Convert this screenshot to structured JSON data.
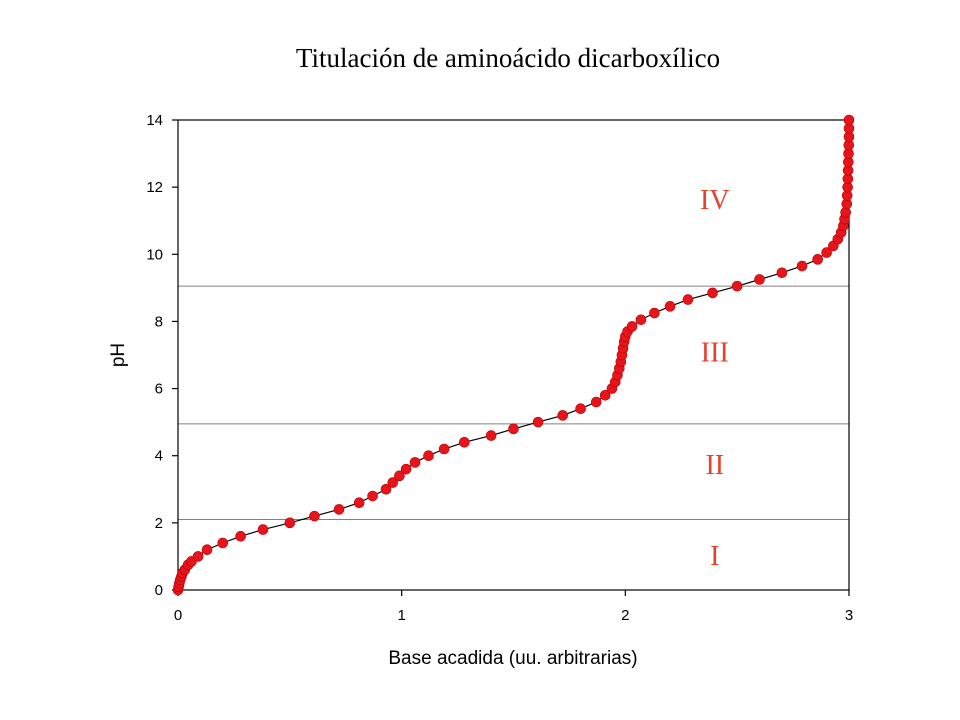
{
  "chart_data": {
    "type": "scatter",
    "title": "Titulación de aminoácido  dicarboxílico",
    "xlabel": "Base acadida (uu. arbitrarias)",
    "ylabel": "pH",
    "xlim": [
      0,
      3
    ],
    "ylim": [
      0,
      14
    ],
    "x_ticks": [
      0,
      1,
      2,
      3
    ],
    "y_ticks": [
      0,
      2,
      4,
      6,
      8,
      10,
      12,
      14
    ],
    "grid": false,
    "legend": "none",
    "colors": {
      "points": "#e8141b",
      "line": "#000000",
      "region_labels": "#e8402a",
      "reference_lines": "#808080"
    },
    "reference_lines_y": [
      2.1,
      4.95,
      9.05
    ],
    "region_labels": [
      {
        "text": "I",
        "x": 2.4,
        "y": 0.75
      },
      {
        "text": "II",
        "x": 2.4,
        "y": 3.45
      },
      {
        "text": "III",
        "x": 2.4,
        "y": 6.8
      },
      {
        "text": "IV",
        "x": 2.4,
        "y": 11.35
      }
    ],
    "series": [
      {
        "points": [
          [
            0.0,
            0.0
          ],
          [
            0.003,
            0.1
          ],
          [
            0.006,
            0.2
          ],
          [
            0.01,
            0.3
          ],
          [
            0.015,
            0.4
          ],
          [
            0.02,
            0.5
          ],
          [
            0.03,
            0.6
          ],
          [
            0.045,
            0.75
          ],
          [
            0.06,
            0.85
          ],
          [
            0.09,
            1.0
          ],
          [
            0.13,
            1.2
          ],
          [
            0.2,
            1.4
          ],
          [
            0.28,
            1.6
          ],
          [
            0.38,
            1.8
          ],
          [
            0.5,
            2.0
          ],
          [
            0.61,
            2.2
          ],
          [
            0.72,
            2.4
          ],
          [
            0.81,
            2.6
          ],
          [
            0.87,
            2.8
          ],
          [
            0.93,
            3.0
          ],
          [
            0.96,
            3.2
          ],
          [
            0.99,
            3.4
          ],
          [
            1.02,
            3.6
          ],
          [
            1.06,
            3.8
          ],
          [
            1.12,
            4.0
          ],
          [
            1.19,
            4.2
          ],
          [
            1.28,
            4.4
          ],
          [
            1.4,
            4.6
          ],
          [
            1.5,
            4.8
          ],
          [
            1.61,
            5.0
          ],
          [
            1.72,
            5.2
          ],
          [
            1.8,
            5.4
          ],
          [
            1.87,
            5.6
          ],
          [
            1.91,
            5.8
          ],
          [
            1.94,
            6.0
          ],
          [
            1.955,
            6.2
          ],
          [
            1.965,
            6.4
          ],
          [
            1.973,
            6.6
          ],
          [
            1.98,
            6.8
          ],
          [
            1.985,
            7.0
          ],
          [
            1.99,
            7.2
          ],
          [
            1.995,
            7.4
          ],
          [
            2.0,
            7.55
          ],
          [
            2.01,
            7.7
          ],
          [
            2.03,
            7.85
          ],
          [
            2.07,
            8.05
          ],
          [
            2.13,
            8.25
          ],
          [
            2.2,
            8.45
          ],
          [
            2.28,
            8.65
          ],
          [
            2.39,
            8.85
          ],
          [
            2.5,
            9.05
          ],
          [
            2.6,
            9.25
          ],
          [
            2.7,
            9.45
          ],
          [
            2.79,
            9.65
          ],
          [
            2.86,
            9.85
          ],
          [
            2.9,
            10.05
          ],
          [
            2.93,
            10.25
          ],
          [
            2.95,
            10.45
          ],
          [
            2.965,
            10.65
          ],
          [
            2.975,
            10.85
          ],
          [
            2.98,
            11.05
          ],
          [
            2.985,
            11.25
          ],
          [
            2.99,
            11.5
          ],
          [
            2.992,
            11.75
          ],
          [
            2.994,
            12.0
          ],
          [
            2.995,
            12.25
          ],
          [
            2.996,
            12.5
          ],
          [
            2.997,
            12.75
          ],
          [
            2.998,
            13.0
          ],
          [
            2.999,
            13.25
          ],
          [
            3.0,
            13.5
          ],
          [
            3.0,
            13.75
          ],
          [
            3.0,
            14.0
          ]
        ]
      }
    ]
  }
}
